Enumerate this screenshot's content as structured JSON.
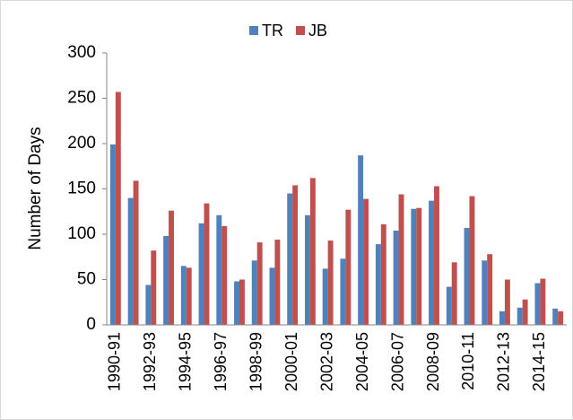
{
  "chart_data": {
    "type": "bar",
    "y_label": "Number of Days",
    "categories": [
      "1990-91",
      null,
      "1992-93",
      null,
      "1994-95",
      null,
      "1996-97",
      null,
      "1998-99",
      null,
      "2000-01",
      null,
      "2002-03",
      null,
      "2004-05",
      null,
      "2006-07",
      null,
      "2008-09",
      null,
      "2010-11",
      null,
      "2012-13",
      null,
      "2014-15",
      null
    ],
    "series": [
      {
        "name": "TR",
        "color": "#4f81bd",
        "values": [
          199,
          140,
          44,
          98,
          65,
          112,
          121,
          48,
          71,
          63,
          145,
          121,
          62,
          73,
          187,
          89,
          104,
          128,
          137,
          42,
          107,
          71,
          15,
          19,
          46,
          18
        ]
      },
      {
        "name": "JB",
        "color": "#c0504d",
        "values": [
          257,
          159,
          82,
          126,
          63,
          134,
          109,
          50,
          91,
          94,
          154,
          162,
          93,
          127,
          139,
          111,
          144,
          129,
          153,
          69,
          142,
          78,
          50,
          28,
          51,
          15
        ]
      }
    ],
    "ylim": [
      0,
      300
    ],
    "yticks": [
      0,
      50,
      100,
      150,
      200,
      250,
      300
    ],
    "grid": false,
    "legend": "top"
  }
}
